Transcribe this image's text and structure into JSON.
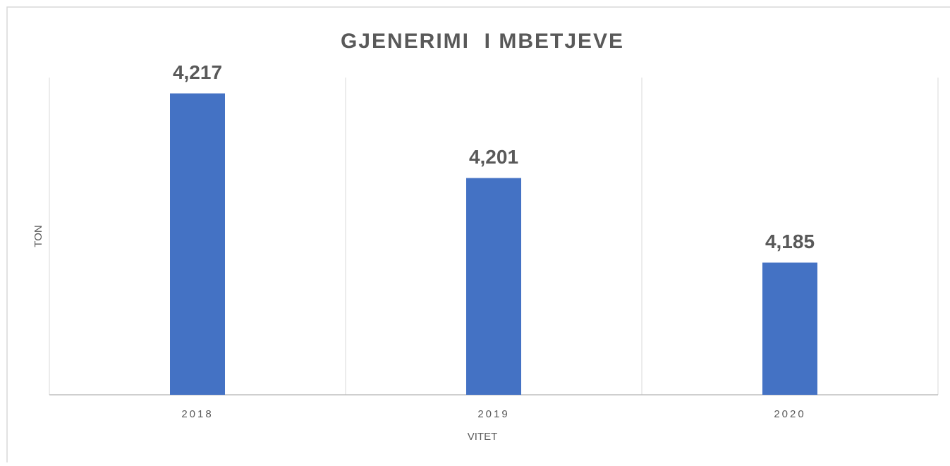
{
  "chart_data": {
    "type": "bar",
    "title": "GJENERIMI  I MBETJEVE",
    "x_label": "VITET",
    "y_label": "TON",
    "categories": [
      "2018",
      "2019",
      "2020"
    ],
    "values": [
      4217,
      4201,
      4185
    ],
    "value_labels": [
      "4,217",
      "4,201",
      "4,185"
    ],
    "color": "#4472c4",
    "ylim": [
      4160,
      4220
    ],
    "grid": true
  }
}
